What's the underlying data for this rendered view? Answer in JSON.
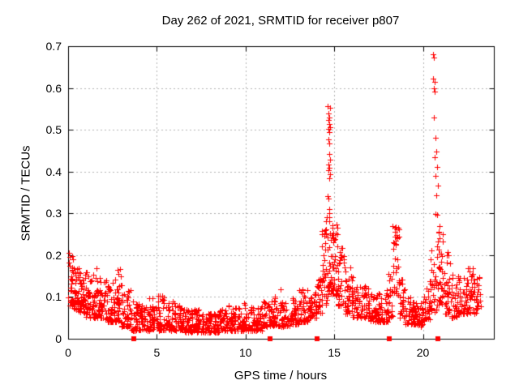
{
  "window": {
    "background": "#ffffff",
    "foreground": "#000000"
  },
  "chart_data": {
    "type": "scatter",
    "title": "Day 262 of 2021, SRMTID for receiver p807",
    "xlabel": "GPS time / hours",
    "ylabel": "SRMTID / TECUs",
    "xlim": [
      0,
      24
    ],
    "ylim": [
      0,
      0.7
    ],
    "xticks": [
      "0",
      "5",
      "10",
      "15",
      "20"
    ],
    "xtick_values": [
      0,
      5,
      10,
      15,
      20
    ],
    "yticks": [
      "0",
      "0.1",
      "0.2",
      "0.3",
      "0.4",
      "0.5",
      "0.6",
      "0.7"
    ],
    "ytick_values": [
      0,
      0.1,
      0.2,
      0.3,
      0.4,
      0.5,
      0.6,
      0.7
    ],
    "grid": {
      "visible": true,
      "style": "dashed",
      "color": "#b2b2b2",
      "dash": [
        2,
        3
      ]
    },
    "axis_color": "#000000",
    "marker": {
      "shape": "plus",
      "size": 7,
      "color": "#ff0000"
    },
    "series": [
      {
        "name": "srmtid-scatter",
        "type": "binned-scatter",
        "seed": 20210262,
        "comment_bins": "each bin = [hour_start, hour_end, n_points, y_low, y_high, skew_toward_low]",
        "bins": [
          [
            0.0,
            0.3,
            30,
            0.08,
            0.21,
            1.5
          ],
          [
            0.3,
            0.6,
            35,
            0.07,
            0.17,
            1.8
          ],
          [
            0.6,
            1.0,
            45,
            0.06,
            0.16,
            1.8
          ],
          [
            1.0,
            1.5,
            50,
            0.05,
            0.16,
            1.8
          ],
          [
            1.5,
            2.0,
            50,
            0.05,
            0.17,
            2.0
          ],
          [
            2.0,
            2.5,
            45,
            0.04,
            0.14,
            2.0
          ],
          [
            2.5,
            3.0,
            45,
            0.04,
            0.17,
            2.2
          ],
          [
            3.0,
            3.5,
            45,
            0.03,
            0.13,
            2.2
          ],
          [
            3.5,
            4.0,
            40,
            0.02,
            0.09,
            1.8
          ],
          [
            4.0,
            4.5,
            40,
            0.02,
            0.08,
            1.6
          ],
          [
            4.5,
            5.0,
            42,
            0.02,
            0.1,
            2.0
          ],
          [
            5.0,
            5.5,
            42,
            0.02,
            0.11,
            2.2
          ],
          [
            5.5,
            6.0,
            42,
            0.02,
            0.09,
            2.0
          ],
          [
            6.0,
            6.5,
            42,
            0.02,
            0.08,
            1.8
          ],
          [
            6.5,
            7.0,
            42,
            0.015,
            0.07,
            1.6
          ],
          [
            7.0,
            7.5,
            42,
            0.015,
            0.07,
            1.6
          ],
          [
            7.5,
            8.0,
            42,
            0.015,
            0.06,
            1.5
          ],
          [
            8.0,
            8.5,
            42,
            0.015,
            0.065,
            1.5
          ],
          [
            8.5,
            9.0,
            42,
            0.02,
            0.07,
            1.6
          ],
          [
            9.0,
            9.5,
            42,
            0.02,
            0.08,
            1.8
          ],
          [
            9.5,
            10.0,
            42,
            0.02,
            0.09,
            2.0
          ],
          [
            10.0,
            10.5,
            42,
            0.02,
            0.075,
            1.7
          ],
          [
            10.5,
            11.0,
            42,
            0.02,
            0.08,
            1.8
          ],
          [
            11.0,
            11.5,
            40,
            0.03,
            0.09,
            1.7
          ],
          [
            11.5,
            12.0,
            40,
            0.03,
            0.12,
            2.0
          ],
          [
            12.0,
            12.5,
            40,
            0.03,
            0.09,
            1.7
          ],
          [
            12.5,
            13.0,
            40,
            0.035,
            0.1,
            1.8
          ],
          [
            13.0,
            13.5,
            40,
            0.04,
            0.12,
            1.9
          ],
          [
            13.5,
            14.0,
            40,
            0.05,
            0.12,
            1.7
          ],
          [
            14.0,
            14.3,
            25,
            0.06,
            0.16,
            1.5
          ],
          [
            14.3,
            14.6,
            30,
            0.08,
            0.28,
            1.6
          ],
          [
            14.6,
            14.9,
            35,
            0.1,
            0.3,
            1.3
          ],
          [
            14.9,
            15.2,
            35,
            0.1,
            0.28,
            1.5
          ],
          [
            15.2,
            15.6,
            35,
            0.08,
            0.22,
            1.7
          ],
          [
            15.6,
            16.0,
            35,
            0.06,
            0.17,
            1.8
          ],
          [
            16.0,
            16.5,
            40,
            0.05,
            0.15,
            1.8
          ],
          [
            16.5,
            17.0,
            40,
            0.05,
            0.13,
            1.8
          ],
          [
            17.0,
            17.5,
            40,
            0.04,
            0.11,
            1.8
          ],
          [
            17.5,
            18.0,
            40,
            0.04,
            0.12,
            2.0
          ],
          [
            18.0,
            18.3,
            25,
            0.05,
            0.16,
            1.8
          ],
          [
            18.3,
            18.7,
            30,
            0.1,
            0.27,
            1.2
          ],
          [
            18.7,
            19.0,
            25,
            0.05,
            0.15,
            1.8
          ],
          [
            19.0,
            19.5,
            40,
            0.035,
            0.1,
            1.8
          ],
          [
            19.5,
            20.0,
            40,
            0.03,
            0.09,
            1.7
          ],
          [
            20.0,
            20.4,
            30,
            0.04,
            0.12,
            1.8
          ],
          [
            20.4,
            20.8,
            30,
            0.06,
            0.22,
            1.8
          ],
          [
            20.8,
            21.2,
            35,
            0.08,
            0.27,
            1.6
          ],
          [
            21.2,
            21.6,
            35,
            0.06,
            0.22,
            1.9
          ],
          [
            21.6,
            22.0,
            35,
            0.05,
            0.17,
            1.8
          ],
          [
            22.0,
            22.5,
            45,
            0.06,
            0.15,
            1.7
          ],
          [
            22.5,
            23.0,
            40,
            0.06,
            0.17,
            1.8
          ],
          [
            23.0,
            23.3,
            20,
            0.07,
            0.15,
            1.6
          ]
        ]
      },
      {
        "name": "srmtid-spike-points",
        "type": "points",
        "points": [
          [
            0.05,
            0.205
          ],
          [
            0.08,
            0.195
          ],
          [
            14.62,
            0.557
          ],
          [
            14.75,
            0.552
          ],
          [
            14.68,
            0.539
          ],
          [
            14.73,
            0.529
          ],
          [
            14.66,
            0.523
          ],
          [
            14.71,
            0.514
          ],
          [
            14.76,
            0.506
          ],
          [
            14.69,
            0.503
          ],
          [
            14.72,
            0.494
          ],
          [
            14.67,
            0.477
          ],
          [
            14.73,
            0.467
          ],
          [
            14.7,
            0.442
          ],
          [
            14.75,
            0.429
          ],
          [
            14.66,
            0.417
          ],
          [
            14.72,
            0.409
          ],
          [
            14.69,
            0.403
          ],
          [
            14.76,
            0.393
          ],
          [
            14.71,
            0.384
          ],
          [
            14.64,
            0.341
          ],
          [
            14.69,
            0.336
          ],
          [
            14.73,
            0.31
          ],
          [
            14.7,
            0.3
          ],
          [
            14.58,
            0.29
          ],
          [
            14.52,
            0.282
          ],
          [
            18.48,
            0.268
          ],
          [
            18.53,
            0.262
          ],
          [
            18.44,
            0.255
          ],
          [
            18.5,
            0.248
          ],
          [
            18.56,
            0.242
          ],
          [
            18.47,
            0.235
          ],
          [
            20.55,
            0.68
          ],
          [
            20.62,
            0.673
          ],
          [
            20.58,
            0.622
          ],
          [
            20.65,
            0.615
          ],
          [
            20.6,
            0.6
          ],
          [
            20.68,
            0.592
          ],
          [
            20.63,
            0.529
          ],
          [
            20.7,
            0.481
          ],
          [
            20.75,
            0.447
          ],
          [
            20.66,
            0.435
          ],
          [
            20.8,
            0.412
          ],
          [
            20.72,
            0.389
          ],
          [
            20.85,
            0.366
          ],
          [
            20.77,
            0.343
          ],
          [
            20.7,
            0.299
          ],
          [
            20.82,
            0.296
          ],
          [
            20.92,
            0.27
          ],
          [
            20.88,
            0.255
          ]
        ]
      },
      {
        "name": "event-flags",
        "type": "baseline-squares",
        "marker": {
          "shape": "filled-square",
          "size": 6,
          "color": "#ff0000"
        },
        "y": 0,
        "x": [
          3.7,
          11.4,
          14.05,
          18.1,
          20.85
        ]
      }
    ]
  }
}
